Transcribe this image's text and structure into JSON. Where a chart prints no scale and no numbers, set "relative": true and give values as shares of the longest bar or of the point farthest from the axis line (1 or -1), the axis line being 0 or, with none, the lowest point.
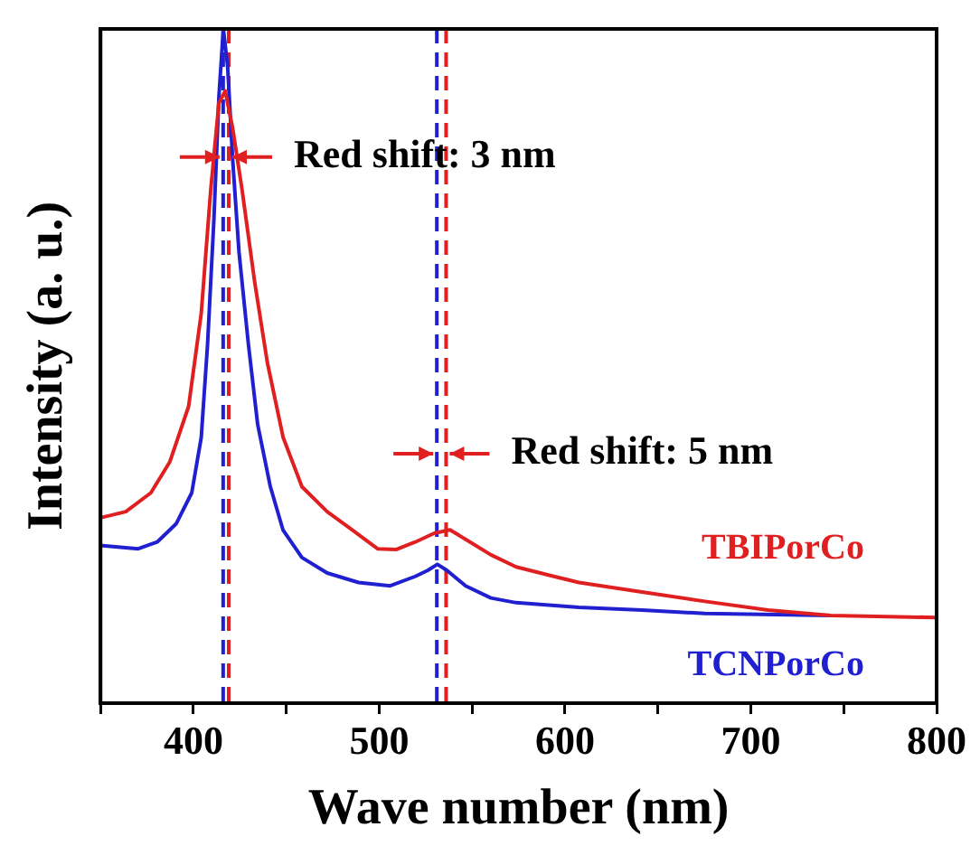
{
  "chart_data": {
    "type": "line",
    "relative": true,
    "xlabel": "Wave number (nm)",
    "ylabel": "Intensity (a. u.)",
    "xlim": [
      350,
      800
    ],
    "xticks": [
      {
        "value": 350,
        "label": null
      },
      400,
      {
        "value": 450,
        "label": null
      },
      500,
      {
        "value": 550,
        "label": null
      },
      600,
      {
        "value": 650,
        "label": null
      },
      700,
      {
        "value": 750,
        "label": null
      },
      800
    ],
    "grid": false,
    "legend": false,
    "marker": "none",
    "line_style": "solid",
    "series": [
      {
        "name": "TBIPorCo",
        "color": "#e02020",
        "x": [
          350,
          363.6,
          377.1,
          387.3,
          397.4,
          404.2,
          409.3,
          413.7,
          417.1,
          421.1,
          426.2,
          433,
          439.8,
          448.3,
          458.4,
          472,
          485.5,
          499.1,
          509.3,
          519.4,
          529.6,
          538.1,
          546.5,
          560.1,
          573.7,
          594,
          607.5,
          641.4,
          675.3,
          709.2,
          743.1,
          800
        ],
        "values": [
          0.275,
          0.284,
          0.312,
          0.358,
          0.44,
          0.578,
          0.761,
          0.89,
          0.908,
          0.853,
          0.761,
          0.624,
          0.505,
          0.394,
          0.321,
          0.284,
          0.257,
          0.229,
          0.228,
          0.239,
          0.252,
          0.257,
          0.243,
          0.22,
          0.202,
          0.188,
          0.179,
          0.165,
          0.151,
          0.138,
          0.13,
          0.127
        ]
      },
      {
        "name": "TCNPorCo",
        "color": "#2020d0",
        "x": [
          350,
          370.3,
          380.5,
          390.7,
          399.1,
          404.2,
          407.6,
          411,
          413.7,
          416.1,
          418.4,
          421.1,
          424.5,
          429.6,
          434.6,
          441.4,
          448.2,
          458.4,
          472,
          488.9,
          505.9,
          519.4,
          526.2,
          531.3,
          536.4,
          546.5,
          560.1,
          573.7,
          607.5,
          641.4,
          675.3,
          743.1
        ],
        "values": [
          0.234,
          0.229,
          0.239,
          0.266,
          0.312,
          0.394,
          0.532,
          0.716,
          0.899,
          1,
          0.945,
          0.807,
          0.67,
          0.532,
          0.413,
          0.321,
          0.257,
          0.216,
          0.193,
          0.179,
          0.174,
          0.188,
          0.197,
          0.206,
          0.197,
          0.174,
          0.156,
          0.149,
          0.142,
          0.138,
          0.133,
          0.13
        ]
      }
    ],
    "ref_lines": [
      {
        "axis": "x",
        "value": 416,
        "color": "#2020d0",
        "line_style": "dashed"
      },
      {
        "axis": "x",
        "value": 419,
        "color": "#e02020",
        "line_style": "dashed"
      },
      {
        "axis": "x",
        "value": 531,
        "color": "#2020d0",
        "line_style": "dashed"
      },
      {
        "axis": "x",
        "value": 536,
        "color": "#e02020",
        "line_style": "dashed"
      }
    ],
    "annotations": [
      "Red shift: 3 nm",
      "Red shift: 5 nm"
    ]
  }
}
